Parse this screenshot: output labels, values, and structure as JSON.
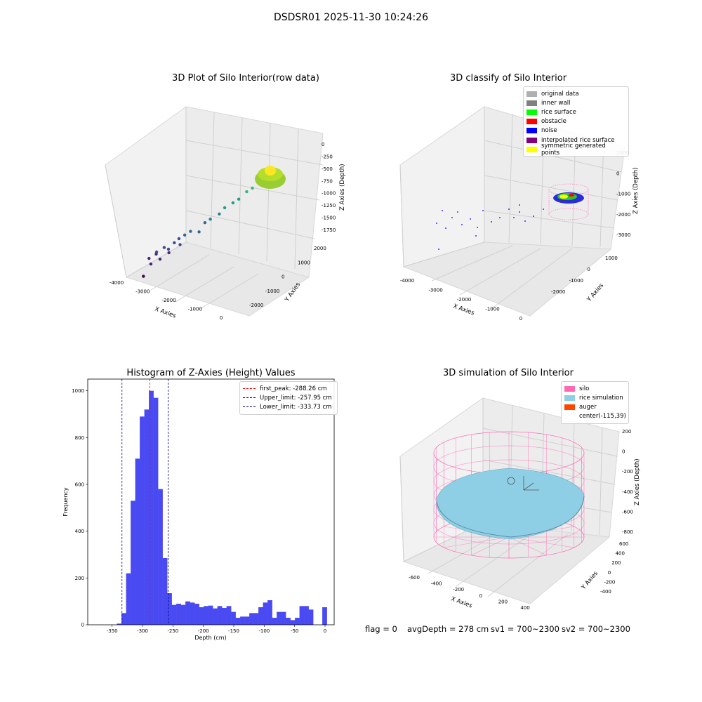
{
  "suptitle": "DSDSR01 2025-11-30 10:24:26",
  "status_line": {
    "flag": "flag = 0",
    "avg": "avgDepth = 278 cm",
    "sv1": "sv1 = 700~2300",
    "sv2": "sv2 = 700~2300"
  },
  "colors": {
    "hist_bar": "#4a4af2",
    "first_peak": "#ff0000",
    "limits": "#00008b",
    "silo": "#ff69b4",
    "rice_sim": "#8ecfe6",
    "auger": "#ff4500"
  },
  "chart_data": [
    {
      "type": "scatter3d",
      "title": "3D Plot of Silo Interior(row data)",
      "xlabel": "X Axies",
      "ylabel": "Y Axies",
      "zlabel": "Z Axies (Depth)",
      "x_ticks": [
        "-4000",
        "-3000",
        "-2000",
        "-1000",
        "0"
      ],
      "y_ticks": [
        "-2000",
        "-1000",
        "0",
        "1000",
        "2000"
      ],
      "z_ticks": [
        "0",
        "-250",
        "-500",
        "-750",
        "-1000",
        "-1250",
        "-1500",
        "-1750"
      ],
      "colormap": "viridis",
      "points": [
        {
          "x": -3950,
          "y": 200,
          "z": -1900
        },
        {
          "x": -3800,
          "y": 300,
          "z": -1600
        },
        {
          "x": -3700,
          "y": 100,
          "z": -1700
        },
        {
          "x": -3600,
          "y": 400,
          "z": -1550
        },
        {
          "x": -3500,
          "y": 0,
          "z": -1500
        },
        {
          "x": -3450,
          "y": 250,
          "z": -1650
        },
        {
          "x": -3300,
          "y": 150,
          "z": -1450
        },
        {
          "x": -3200,
          "y": 300,
          "z": -1500
        },
        {
          "x": -3100,
          "y": -100,
          "z": -1550
        },
        {
          "x": -3000,
          "y": 200,
          "z": -1400
        },
        {
          "x": -2900,
          "y": 400,
          "z": -1350
        },
        {
          "x": -2800,
          "y": 100,
          "z": -1450
        },
        {
          "x": -2700,
          "y": 300,
          "z": -1300
        },
        {
          "x": -2500,
          "y": 200,
          "z": -1250
        },
        {
          "x": -2300,
          "y": 500,
          "z": -1300
        },
        {
          "x": -2100,
          "y": 400,
          "z": -1150
        },
        {
          "x": -1900,
          "y": 250,
          "z": -1100
        },
        {
          "x": -1700,
          "y": 600,
          "z": -1050
        },
        {
          "x": -1500,
          "y": 450,
          "z": -950
        },
        {
          "x": -1300,
          "y": 700,
          "z": -900
        },
        {
          "x": -1100,
          "y": 600,
          "z": -850
        },
        {
          "x": -900,
          "y": 800,
          "z": -750
        },
        {
          "x": -700,
          "y": 700,
          "z": -700
        },
        {
          "x": -500,
          "y": 900,
          "z": -600
        },
        {
          "x": -300,
          "y": 800,
          "z": -550
        }
      ]
    },
    {
      "type": "scatter3d",
      "title": "3D classify of Silo Interior",
      "xlabel": "X Axies",
      "ylabel": "Y Axies",
      "zlabel": "Z Axies (Depth)",
      "x_ticks": [
        "-4000",
        "-3000",
        "-2000",
        "-1000",
        "0"
      ],
      "y_ticks": [
        "-2000",
        "-1000",
        "0",
        "1000"
      ],
      "z_ticks": [
        "1000",
        "0",
        "-1000",
        "-2000",
        "-3000"
      ],
      "legend": [
        {
          "label": "original data",
          "color": "#b0b0b0"
        },
        {
          "label": "inner wall",
          "color": "#808080"
        },
        {
          "label": "rice surface",
          "color": "#00ff00"
        },
        {
          "label": "obstacle",
          "color": "#ff0000"
        },
        {
          "label": "noise",
          "color": "#0000ff"
        },
        {
          "label": "interpolated rice surface",
          "color": "#800080"
        },
        {
          "label": "symmetric generated points",
          "color": "#ffff00"
        }
      ]
    },
    {
      "type": "bar",
      "title": "Histogram of Z-Axies (Height) Values",
      "xlabel": "Depth (cm)",
      "ylabel": "Frequency",
      "xlim": [
        -390,
        15
      ],
      "ylim": [
        0,
        1050
      ],
      "x_ticks": [
        -350,
        -300,
        -250,
        -200,
        -150,
        -100,
        -50,
        0
      ],
      "y_ticks": [
        0,
        200,
        400,
        600,
        800,
        1000
      ],
      "bin_width": 7.5,
      "bin_start": -342,
      "values": [
        5,
        50,
        220,
        530,
        710,
        890,
        920,
        1000,
        970,
        580,
        285,
        135,
        85,
        90,
        85,
        100,
        95,
        90,
        75,
        80,
        82,
        70,
        80,
        72,
        80,
        55,
        30,
        35,
        35,
        50,
        50,
        75,
        95,
        105,
        30,
        55,
        55,
        30,
        20,
        30,
        80,
        80,
        65,
        0,
        0,
        75
      ],
      "lines": [
        {
          "label": "first_peak: -288.26 cm",
          "x": -288.26,
          "color": "#ff0000"
        },
        {
          "label": "Upper_limit: -257.95 cm",
          "x": -257.95,
          "color": "#00008b"
        },
        {
          "label": "Lower_limit: -333.73 cm",
          "x": -333.73,
          "color": "#00008b"
        }
      ],
      "legend_position": "top-right"
    },
    {
      "type": "surface3d",
      "title": "3D simulation of Silo Interior",
      "xlabel": "X Axies",
      "ylabel": "Y Axies",
      "zlabel": "Z Axies (Depth)",
      "x_ticks": [
        "-600",
        "-400",
        "-200",
        "0",
        "200",
        "400"
      ],
      "y_ticks": [
        "600",
        "400",
        "200",
        "0",
        "-200",
        "-400"
      ],
      "z_ticks": [
        "200",
        "0",
        "-200",
        "-400",
        "-600",
        "-800"
      ],
      "legend": [
        {
          "label": "silo",
          "color": "#ff69b4"
        },
        {
          "label": "rice simulation",
          "color": "#8ecfe6"
        },
        {
          "label": "auger",
          "color": "#ff4500"
        },
        {
          "label": "center(-115,39)",
          "color": ""
        }
      ]
    }
  ]
}
